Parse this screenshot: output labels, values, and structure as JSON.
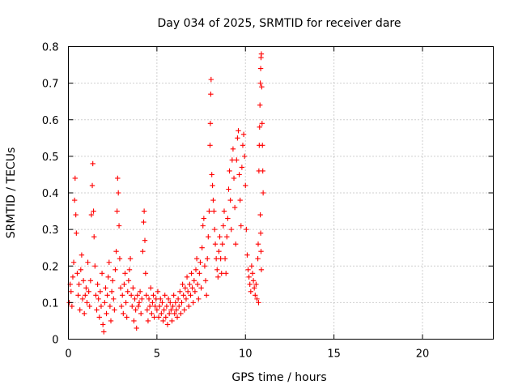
{
  "chart_data": {
    "type": "scatter",
    "title": "Day 034 of 2025, SRMTID for receiver dare",
    "xlabel": "GPS time / hours",
    "ylabel": "SRMTID / TECUs",
    "xlim": [
      0,
      24
    ],
    "ylim": [
      0,
      0.8
    ],
    "x_ticks": [
      0,
      5,
      10,
      15,
      20
    ],
    "y_ticks": [
      0,
      0.1,
      0.2,
      0.3,
      0.4,
      0.5,
      0.6,
      0.7,
      0.8
    ],
    "x_tick_labels": [
      "0",
      "5",
      "10",
      "15",
      "20"
    ],
    "y_tick_labels": [
      "0",
      "0.1",
      "0.2",
      "0.3",
      "0.4",
      "0.5",
      "0.6",
      "0.7",
      "0.8"
    ],
    "grid": true,
    "marker": "plus",
    "color": "#ff0000",
    "series": [
      {
        "name": "SRMTID",
        "points": [
          [
            0.05,
            0.1
          ],
          [
            0.1,
            0.15
          ],
          [
            0.15,
            0.13
          ],
          [
            0.2,
            0.09
          ],
          [
            0.25,
            0.17
          ],
          [
            0.3,
            0.21
          ],
          [
            0.35,
            0.38
          ],
          [
            0.38,
            0.44
          ],
          [
            0.42,
            0.34
          ],
          [
            0.45,
            0.29
          ],
          [
            0.5,
            0.18
          ],
          [
            0.55,
            0.12
          ],
          [
            0.6,
            0.15
          ],
          [
            0.65,
            0.08
          ],
          [
            0.7,
            0.19
          ],
          [
            0.75,
            0.23
          ],
          [
            0.8,
            0.11
          ],
          [
            0.85,
            0.16
          ],
          [
            0.9,
            0.07
          ],
          [
            0.95,
            0.12
          ],
          [
            1.0,
            0.14
          ],
          [
            1.05,
            0.1
          ],
          [
            1.1,
            0.21
          ],
          [
            1.15,
            0.13
          ],
          [
            1.2,
            0.09
          ],
          [
            1.25,
            0.16
          ],
          [
            1.3,
            0.34
          ],
          [
            1.35,
            0.42
          ],
          [
            1.38,
            0.48
          ],
          [
            1.42,
            0.35
          ],
          [
            1.45,
            0.28
          ],
          [
            1.5,
            0.2
          ],
          [
            1.55,
            0.12
          ],
          [
            1.6,
            0.08
          ],
          [
            1.65,
            0.15
          ],
          [
            1.7,
            0.11
          ],
          [
            1.75,
            0.06
          ],
          [
            1.8,
            0.13
          ],
          [
            1.85,
            0.09
          ],
          [
            1.9,
            0.18
          ],
          [
            1.95,
            0.04
          ],
          [
            2.0,
            0.02
          ],
          [
            2.05,
            0.1
          ],
          [
            2.1,
            0.14
          ],
          [
            2.15,
            0.07
          ],
          [
            2.2,
            0.12
          ],
          [
            2.25,
            0.17
          ],
          [
            2.3,
            0.21
          ],
          [
            2.35,
            0.09
          ],
          [
            2.4,
            0.05
          ],
          [
            2.45,
            0.13
          ],
          [
            2.5,
            0.16
          ],
          [
            2.55,
            0.11
          ],
          [
            2.6,
            0.08
          ],
          [
            2.65,
            0.19
          ],
          [
            2.7,
            0.24
          ],
          [
            2.75,
            0.35
          ],
          [
            2.78,
            0.44
          ],
          [
            2.82,
            0.4
          ],
          [
            2.86,
            0.31
          ],
          [
            2.9,
            0.22
          ],
          [
            2.95,
            0.14
          ],
          [
            3.0,
            0.09
          ],
          [
            3.05,
            0.12
          ],
          [
            3.1,
            0.07
          ],
          [
            3.15,
            0.15
          ],
          [
            3.2,
            0.18
          ],
          [
            3.25,
            0.1
          ],
          [
            3.3,
            0.06
          ],
          [
            3.35,
            0.13
          ],
          [
            3.4,
            0.16
          ],
          [
            3.45,
            0.19
          ],
          [
            3.5,
            0.22
          ],
          [
            3.55,
            0.12
          ],
          [
            3.6,
            0.09
          ],
          [
            3.65,
            0.14
          ],
          [
            3.7,
            0.05
          ],
          [
            3.75,
            0.11
          ],
          [
            3.8,
            0.08
          ],
          [
            3.85,
            0.03
          ],
          [
            3.9,
            0.12
          ],
          [
            3.95,
            0.09
          ],
          [
            4.0,
            0.1
          ],
          [
            4.05,
            0.13
          ],
          [
            4.1,
            0.07
          ],
          [
            4.15,
            0.11
          ],
          [
            4.2,
            0.24
          ],
          [
            4.25,
            0.32
          ],
          [
            4.28,
            0.35
          ],
          [
            4.32,
            0.27
          ],
          [
            4.36,
            0.18
          ],
          [
            4.4,
            0.12
          ],
          [
            4.45,
            0.08
          ],
          [
            4.5,
            0.05
          ],
          [
            4.55,
            0.11
          ],
          [
            4.6,
            0.09
          ],
          [
            4.65,
            0.14
          ],
          [
            4.7,
            0.07
          ],
          [
            4.75,
            0.1
          ],
          [
            4.8,
            0.12
          ],
          [
            4.85,
            0.06
          ],
          [
            4.9,
            0.09
          ],
          [
            4.95,
            0.11
          ],
          [
            5.0,
            0.08
          ],
          [
            5.05,
            0.13
          ],
          [
            5.1,
            0.06
          ],
          [
            5.15,
            0.09
          ],
          [
            5.2,
            0.11
          ],
          [
            5.25,
            0.07
          ],
          [
            5.3,
            0.1
          ],
          [
            5.35,
            0.05
          ],
          [
            5.4,
            0.08
          ],
          [
            5.45,
            0.12
          ],
          [
            5.5,
            0.06
          ],
          [
            5.55,
            0.09
          ],
          [
            5.6,
            0.04
          ],
          [
            5.65,
            0.11
          ],
          [
            5.7,
            0.07
          ],
          [
            5.75,
            0.1
          ],
          [
            5.8,
            0.08
          ],
          [
            5.85,
            0.05
          ],
          [
            5.9,
            0.09
          ],
          [
            5.95,
            0.12
          ],
          [
            6.0,
            0.07
          ],
          [
            6.05,
            0.1
          ],
          [
            6.1,
            0.08
          ],
          [
            6.15,
            0.06
          ],
          [
            6.2,
            0.11
          ],
          [
            6.25,
            0.09
          ],
          [
            6.3,
            0.13
          ],
          [
            6.35,
            0.07
          ],
          [
            6.4,
            0.1
          ],
          [
            6.45,
            0.15
          ],
          [
            6.5,
            0.12
          ],
          [
            6.55,
            0.08
          ],
          [
            6.6,
            0.14
          ],
          [
            6.65,
            0.11
          ],
          [
            6.7,
            0.17
          ],
          [
            6.75,
            0.13
          ],
          [
            6.8,
            0.09
          ],
          [
            6.85,
            0.15
          ],
          [
            6.9,
            0.12
          ],
          [
            6.95,
            0.18
          ],
          [
            7.0,
            0.14
          ],
          [
            7.05,
            0.1
          ],
          [
            7.1,
            0.16
          ],
          [
            7.15,
            0.13
          ],
          [
            7.2,
            0.19
          ],
          [
            7.25,
            0.22
          ],
          [
            7.3,
            0.15
          ],
          [
            7.35,
            0.11
          ],
          [
            7.4,
            0.18
          ],
          [
            7.45,
            0.21
          ],
          [
            7.5,
            0.14
          ],
          [
            7.55,
            0.25
          ],
          [
            7.6,
            0.31
          ],
          [
            7.65,
            0.33
          ],
          [
            7.7,
            0.2
          ],
          [
            7.75,
            0.16
          ],
          [
            7.8,
            0.12
          ],
          [
            7.85,
            0.22
          ],
          [
            7.9,
            0.28
          ],
          [
            7.95,
            0.35
          ],
          [
            8.0,
            0.53
          ],
          [
            8.02,
            0.59
          ],
          [
            8.04,
            0.67
          ],
          [
            8.06,
            0.71
          ],
          [
            8.1,
            0.45
          ],
          [
            8.14,
            0.42
          ],
          [
            8.18,
            0.38
          ],
          [
            8.22,
            0.35
          ],
          [
            8.26,
            0.3
          ],
          [
            8.3,
            0.26
          ],
          [
            8.35,
            0.22
          ],
          [
            8.4,
            0.19
          ],
          [
            8.45,
            0.17
          ],
          [
            8.5,
            0.24
          ],
          [
            8.55,
            0.28
          ],
          [
            8.6,
            0.22
          ],
          [
            8.65,
            0.18
          ],
          [
            8.7,
            0.26
          ],
          [
            8.75,
            0.31
          ],
          [
            8.8,
            0.35
          ],
          [
            8.85,
            0.22
          ],
          [
            8.9,
            0.18
          ],
          [
            8.95,
            0.28
          ],
          [
            9.0,
            0.33
          ],
          [
            9.05,
            0.41
          ],
          [
            9.1,
            0.46
          ],
          [
            9.15,
            0.38
          ],
          [
            9.2,
            0.3
          ],
          [
            9.25,
            0.49
          ],
          [
            9.3,
            0.52
          ],
          [
            9.35,
            0.44
          ],
          [
            9.4,
            0.36
          ],
          [
            9.45,
            0.26
          ],
          [
            9.5,
            0.49
          ],
          [
            9.55,
            0.55
          ],
          [
            9.6,
            0.57
          ],
          [
            9.65,
            0.45
          ],
          [
            9.7,
            0.38
          ],
          [
            9.75,
            0.31
          ],
          [
            9.8,
            0.47
          ],
          [
            9.85,
            0.53
          ],
          [
            9.9,
            0.56
          ],
          [
            9.95,
            0.5
          ],
          [
            10.0,
            0.42
          ],
          [
            10.05,
            0.3
          ],
          [
            10.1,
            0.23
          ],
          [
            10.15,
            0.19
          ],
          [
            10.2,
            0.17
          ],
          [
            10.25,
            0.15
          ],
          [
            10.3,
            0.13
          ],
          [
            10.35,
            0.2
          ],
          [
            10.4,
            0.18
          ],
          [
            10.45,
            0.16
          ],
          [
            10.5,
            0.14
          ],
          [
            10.55,
            0.12
          ],
          [
            10.6,
            0.15
          ],
          [
            10.65,
            0.11
          ],
          [
            10.7,
            0.22
          ],
          [
            10.72,
            0.26
          ],
          [
            10.74,
            0.1
          ],
          [
            10.76,
            0.46
          ],
          [
            10.78,
            0.53
          ],
          [
            10.8,
            0.58
          ],
          [
            10.82,
            0.64
          ],
          [
            10.84,
            0.7
          ],
          [
            10.86,
            0.74
          ],
          [
            10.88,
            0.77
          ],
          [
            10.9,
            0.78
          ],
          [
            10.92,
            0.69
          ],
          [
            10.94,
            0.59
          ],
          [
            10.96,
            0.53
          ],
          [
            10.98,
            0.46
          ],
          [
            11.0,
            0.4
          ],
          [
            10.84,
            0.34
          ],
          [
            10.86,
            0.29
          ],
          [
            10.88,
            0.24
          ],
          [
            10.9,
            0.19
          ]
        ]
      }
    ]
  }
}
